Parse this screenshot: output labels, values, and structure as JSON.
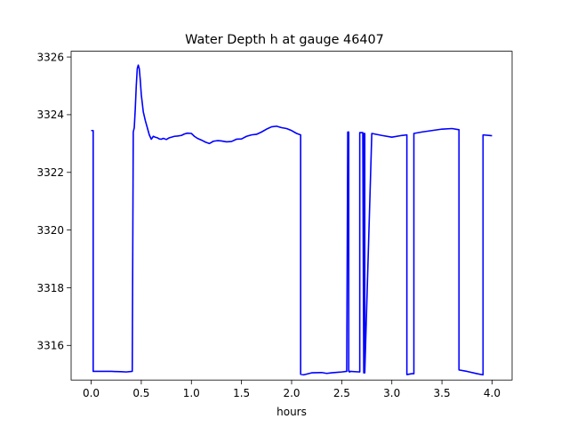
{
  "chart_data": {
    "type": "line",
    "title": "Water Depth h at gauge 46407",
    "xlabel": "hours",
    "ylabel": "",
    "xlim": [
      -0.2,
      4.2
    ],
    "ylim": [
      3314.8,
      3326.2
    ],
    "xticks": [
      0.0,
      0.5,
      1.0,
      1.5,
      2.0,
      2.5,
      3.0,
      3.5,
      4.0
    ],
    "xtick_labels": [
      "0.0",
      "0.5",
      "1.0",
      "1.5",
      "2.0",
      "2.5",
      "3.0",
      "3.5",
      "4.0"
    ],
    "yticks": [
      3316,
      3318,
      3320,
      3322,
      3324,
      3326
    ],
    "ytick_labels": [
      "3316",
      "3318",
      "3320",
      "3322",
      "3324",
      "3326"
    ],
    "grid": false,
    "colors": {
      "line": "#0000ff",
      "axes": "#000000",
      "background": "#ffffff"
    },
    "series": [
      {
        "x": [
          0.0,
          0.02,
          0.02,
          0.1,
          0.2,
          0.3,
          0.35,
          0.41,
          0.42,
          0.42,
          0.43,
          0.44,
          0.45,
          0.46,
          0.47,
          0.48,
          0.49,
          0.5,
          0.52,
          0.54,
          0.56,
          0.58,
          0.6,
          0.61,
          0.62,
          0.64,
          0.66,
          0.68,
          0.7,
          0.72,
          0.75,
          0.78,
          0.8,
          0.83,
          0.86,
          0.9,
          0.93,
          0.96,
          1.0,
          1.03,
          1.06,
          1.1,
          1.14,
          1.18,
          1.22,
          1.26,
          1.3,
          1.35,
          1.4,
          1.45,
          1.5,
          1.55,
          1.6,
          1.65,
          1.7,
          1.75,
          1.8,
          1.85,
          1.9,
          1.95,
          2.0,
          2.05,
          2.09,
          2.09,
          2.12,
          2.2,
          2.3,
          2.35,
          2.4,
          2.5,
          2.55,
          2.56,
          2.57,
          2.57,
          2.58,
          2.58,
          2.68,
          2.68,
          2.71,
          2.72,
          2.72,
          2.73,
          2.73,
          2.8,
          2.9,
          3.0,
          3.1,
          3.15,
          3.15,
          3.2,
          3.22,
          3.22,
          3.3,
          3.4,
          3.5,
          3.6,
          3.67,
          3.67,
          3.75,
          3.85,
          3.91,
          3.91,
          4.0
        ],
        "y": [
          3323.45,
          3323.45,
          3315.1,
          3315.1,
          3315.1,
          3315.09,
          3315.08,
          3315.1,
          3323.4,
          3323.4,
          3323.55,
          3324.2,
          3325.0,
          3325.6,
          3325.72,
          3325.6,
          3325.2,
          3324.7,
          3324.1,
          3323.8,
          3323.55,
          3323.3,
          3323.15,
          3323.2,
          3323.25,
          3323.22,
          3323.2,
          3323.16,
          3323.15,
          3323.18,
          3323.14,
          3323.2,
          3323.22,
          3323.25,
          3323.26,
          3323.28,
          3323.33,
          3323.36,
          3323.35,
          3323.25,
          3323.18,
          3323.12,
          3323.05,
          3323.0,
          3323.08,
          3323.1,
          3323.09,
          3323.06,
          3323.07,
          3323.15,
          3323.16,
          3323.25,
          3323.3,
          3323.32,
          3323.4,
          3323.5,
          3323.58,
          3323.6,
          3323.55,
          3323.52,
          3323.45,
          3323.35,
          3323.3,
          3315.0,
          3314.98,
          3315.05,
          3315.06,
          3315.03,
          3315.05,
          3315.08,
          3315.1,
          3323.4,
          3323.4,
          3315.1,
          3315.08,
          3315.1,
          3315.08,
          3323.38,
          3323.38,
          3315.05,
          3323.35,
          3323.35,
          3315.05,
          3323.35,
          3323.28,
          3323.22,
          3323.28,
          3323.3,
          3314.99,
          3315.02,
          3315.02,
          3323.35,
          3323.4,
          3323.45,
          3323.5,
          3323.52,
          3323.48,
          3315.15,
          3315.1,
          3315.02,
          3314.98,
          3323.3,
          3323.27
        ]
      }
    ]
  }
}
